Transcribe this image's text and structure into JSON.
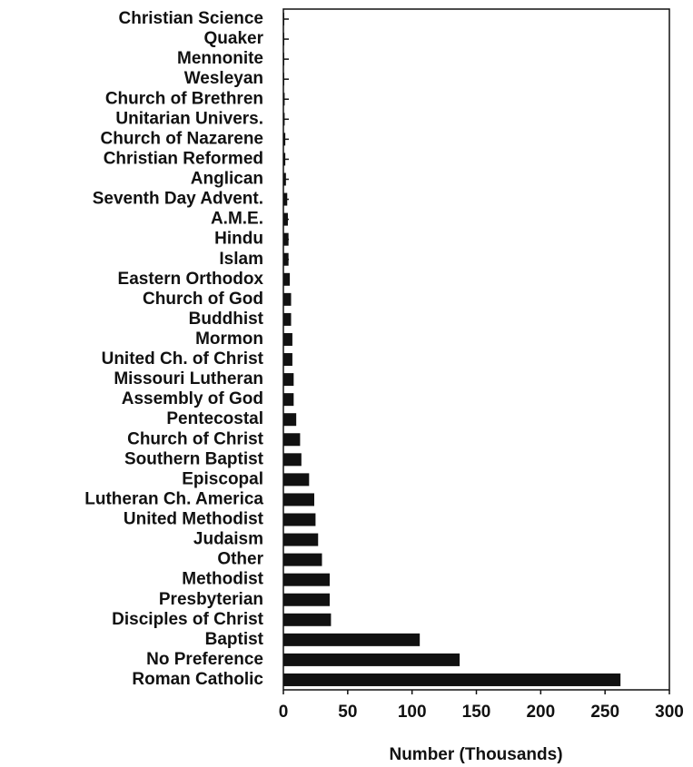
{
  "chart_data": {
    "type": "barh",
    "xlabel": "Number (Thousands)",
    "categories": [
      "Christian Science",
      "Quaker",
      "Mennonite",
      "Wesleyan",
      "Church of Brethren",
      "Unitarian Univers.",
      "Church of Nazarene",
      "Christian Reformed",
      "Anglican",
      "Seventh Day Advent.",
      "A.M.E.",
      "Hindu",
      "Islam",
      "Eastern Orthodox",
      "Church of God",
      "Buddhist",
      "Mormon",
      "United Ch. of Christ",
      "Missouri Lutheran",
      "Assembly of God",
      "Pentecostal",
      "Church of Christ",
      "Southern Baptist",
      "Episcopal",
      "Lutheran Ch. America",
      "United Methodist",
      "Judaism",
      "Other",
      "Methodist",
      "Presbyterian",
      "Disciples of Christ",
      "Baptist",
      "No Preference",
      "Roman Catholic"
    ],
    "values": [
      0.3,
      0.3,
      0.5,
      0.5,
      1,
      1,
      1.5,
      1.5,
      2,
      3,
      3.5,
      4,
      4,
      5,
      6,
      6,
      7,
      7,
      8,
      8,
      10,
      13,
      14,
      20,
      24,
      25,
      27,
      30,
      36,
      36,
      37,
      106,
      137,
      262
    ],
    "color": "#111111",
    "xlim": [
      0,
      300
    ],
    "xticks": [
      0,
      50,
      100,
      150,
      200,
      250,
      300
    ]
  }
}
